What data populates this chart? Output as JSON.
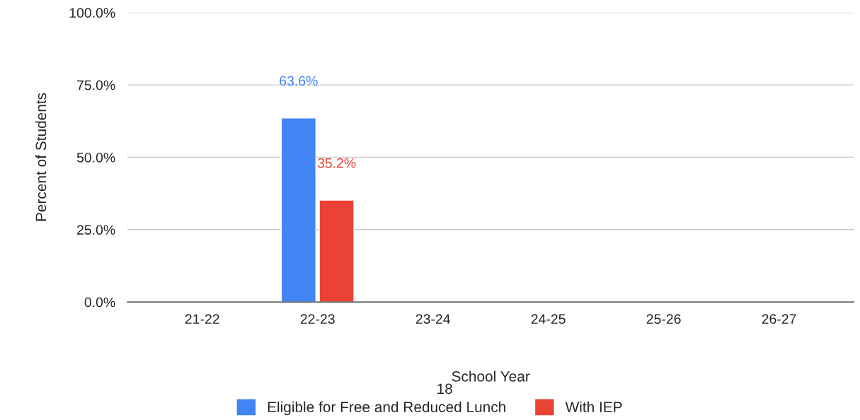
{
  "chart_data": {
    "type": "bar",
    "categories": [
      "21-22",
      "22-23",
      "23-24",
      "24-25",
      "25-26",
      "26-27"
    ],
    "series": [
      {
        "name": "Eligible for Free and Reduced Lunch",
        "color": "#4285f4",
        "values": [
          null,
          63.6,
          null,
          null,
          null,
          null
        ],
        "value_labels": [
          null,
          "63.6%",
          null,
          null,
          null,
          null
        ]
      },
      {
        "name": "With IEP",
        "color": "#ea4335",
        "values": [
          null,
          35.2,
          null,
          null,
          null,
          null
        ],
        "value_labels": [
          null,
          "35.2%",
          null,
          null,
          null,
          null
        ]
      }
    ],
    "xlabel": "School Year",
    "ylabel": "Percent of Students",
    "ylim": [
      0,
      100
    ],
    "yticks": [
      {
        "value": 0,
        "label": "0.0%"
      },
      {
        "value": 25,
        "label": "25.0%"
      },
      {
        "value": 50,
        "label": "50.0%"
      },
      {
        "value": 75,
        "label": "75.0%"
      },
      {
        "value": 100,
        "label": "100.0%"
      }
    ],
    "grid": "y",
    "legend": "bottom",
    "annotations": [
      "18"
    ]
  }
}
